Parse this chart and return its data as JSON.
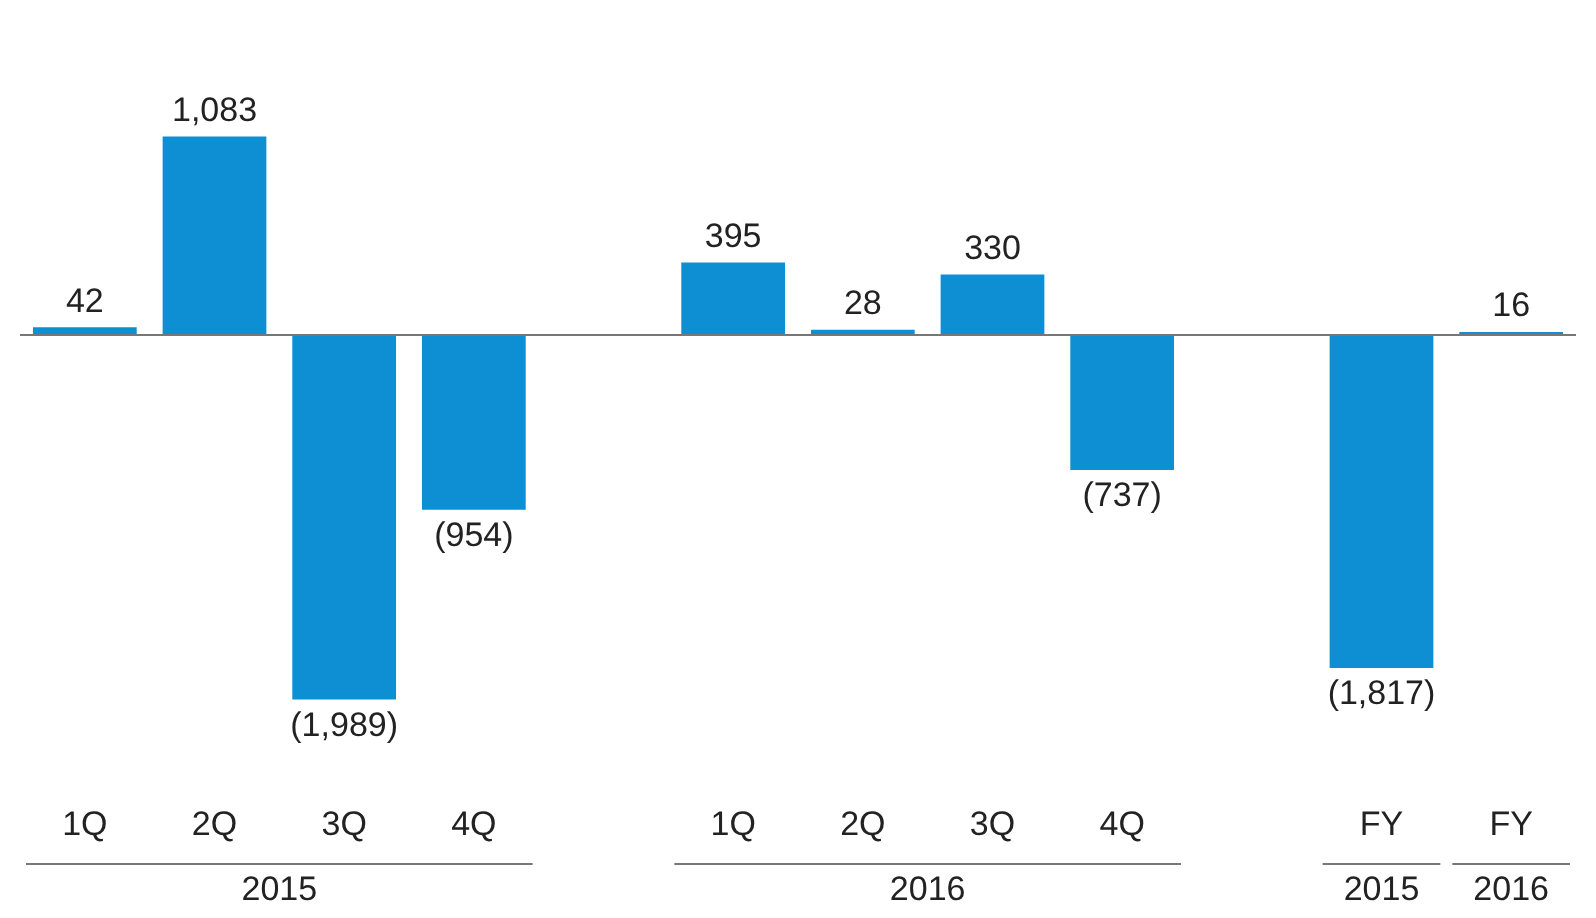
{
  "chart_data": {
    "type": "bar",
    "categories": [
      "1Q",
      "2Q",
      "3Q",
      "4Q",
      null,
      "1Q",
      "2Q",
      "3Q",
      "4Q",
      null,
      "FY",
      "FY"
    ],
    "values": [
      42,
      1083,
      -1989,
      -954,
      null,
      395,
      28,
      330,
      -737,
      null,
      -1817,
      16
    ],
    "value_labels": [
      "42",
      "1,083",
      "(1,989)",
      "(954)",
      null,
      "395",
      "28",
      "330",
      "(737)",
      null,
      "(1,817)",
      "16"
    ],
    "color": "#0e8fd3",
    "annotations": [
      "2015",
      "2016",
      "2015",
      "2016"
    ],
    "grid": false,
    "legend": false
  }
}
